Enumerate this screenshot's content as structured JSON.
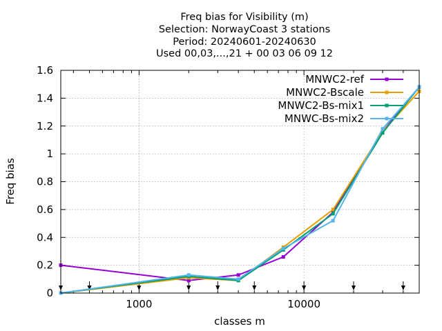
{
  "chart_data": {
    "type": "line",
    "title_lines": [
      "Freq bias  for Visibility (m)",
      "Selection: NorwayCoast      3 stations",
      "Period: 20240601-20240630",
      "Used 00,03,...,21 + 00 03 06 09 12"
    ],
    "xlabel": "classes m",
    "ylabel": "Freq bias",
    "x_scale": "log",
    "xlim": [
      335,
      50000
    ],
    "ylim": [
      0,
      1.6
    ],
    "x_ticks": [
      1000,
      10000
    ],
    "x_tick_labels": [
      "1000",
      "10000"
    ],
    "y_ticks": [
      0,
      0.2,
      0.4,
      0.6,
      0.8,
      1,
      1.2,
      1.4,
      1.6
    ],
    "y_tick_labels": [
      "0",
      "0.2",
      "0.4",
      "0.6",
      "0.8",
      "1",
      "1.2",
      "1.4",
      "1.6"
    ],
    "grid": true,
    "legend_position": "top-right",
    "class_markers_x": [
      335,
      500,
      1000,
      2000,
      3000,
      5000,
      10000,
      20000,
      40000
    ],
    "series": [
      {
        "name": "MNWC2-ref",
        "color": "#9400d3",
        "x": [
          335,
          2000,
          4000,
          7500,
          15000,
          30000,
          50000
        ],
        "y": [
          0.2,
          0.09,
          0.13,
          0.26,
          0.58,
          1.16,
          1.48
        ]
      },
      {
        "name": "MNWC2-Bscale",
        "color": "#e69f00",
        "x": [
          335,
          2000,
          4000,
          7500,
          15000,
          30000,
          50000
        ],
        "y": [
          0.0,
          0.11,
          0.09,
          0.33,
          0.6,
          1.16,
          1.45
        ]
      },
      {
        "name": "MNWC2-Bs-mix1",
        "color": "#009e73",
        "x": [
          335,
          2000,
          4000,
          7500,
          15000,
          30000,
          50000
        ],
        "y": [
          0.0,
          0.12,
          0.09,
          0.31,
          0.57,
          1.15,
          1.48
        ]
      },
      {
        "name": "MNWC-Bs-mix2",
        "color": "#56b4e9",
        "x": [
          335,
          2000,
          4000,
          7500,
          15000,
          30000,
          50000
        ],
        "y": [
          0.0,
          0.13,
          0.1,
          0.32,
          0.52,
          1.18,
          1.48
        ]
      }
    ]
  }
}
